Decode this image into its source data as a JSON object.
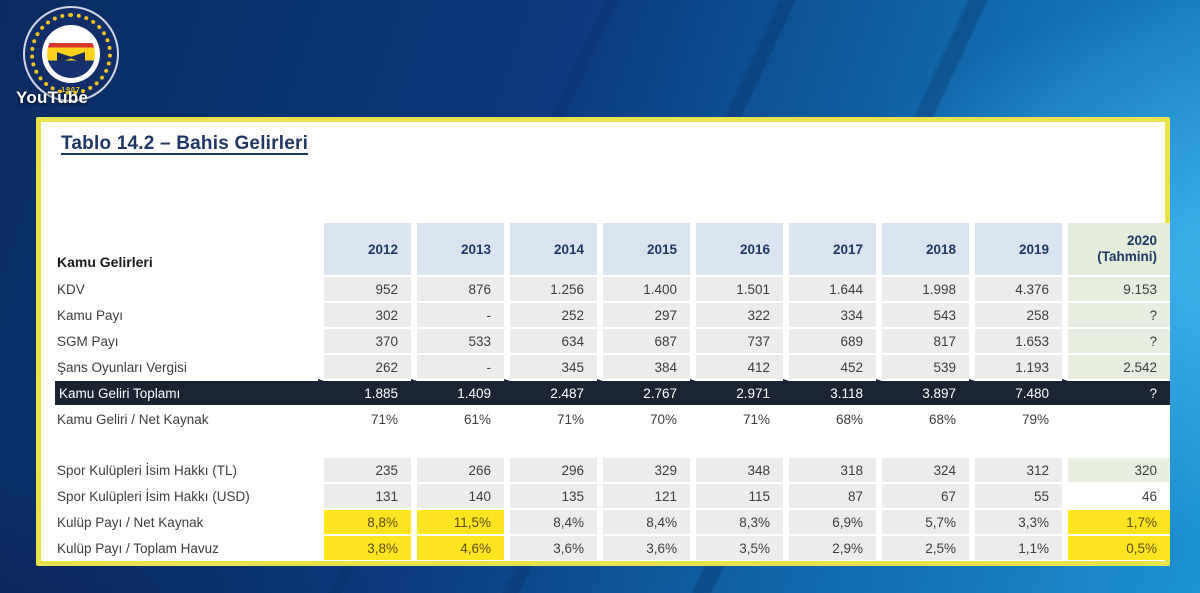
{
  "watermark": "YouTube",
  "logo": {
    "name": "fenerbahce-crest",
    "year": "1907"
  },
  "card": {
    "title": "Tablo 14.2 – Bahis Gelirleri"
  },
  "palette": {
    "card_border": "#e8e34c",
    "title_navy": "#1f3864",
    "header_blue": "#dae4f0",
    "forecast_green_hd": "#e4ecdb",
    "forecast_green": "#e7eee0",
    "highlight_yellow": "#ffe51f",
    "total_dark": "#1b2433"
  },
  "table": {
    "label_header": "Kamu Gelirleri",
    "years": [
      "2012",
      "2013",
      "2014",
      "2015",
      "2016",
      "2017",
      "2018",
      "2019"
    ],
    "forecast_year": {
      "line1": "2020",
      "line2": "(Tahmini)"
    },
    "rows": [
      {
        "label": "KDV",
        "row_style": "gray",
        "last": "green",
        "values": [
          "952",
          "876",
          "1.256",
          "1.400",
          "1.501",
          "1.644",
          "1.998",
          "4.376",
          "9.153"
        ]
      },
      {
        "label": "Kamu Payı",
        "row_style": "gray",
        "last": "green",
        "values": [
          "302",
          "-",
          "252",
          "297",
          "322",
          "334",
          "543",
          "258",
          "?"
        ]
      },
      {
        "label": "SGM Payı",
        "row_style": "gray",
        "last": "green",
        "values": [
          "370",
          "533",
          "634",
          "687",
          "737",
          "689",
          "817",
          "1.653",
          "?"
        ]
      },
      {
        "label": "Şans Oyunları Vergisi",
        "row_style": "gray",
        "last": "green",
        "values": [
          "262",
          "-",
          "345",
          "384",
          "412",
          "452",
          "539",
          "1.193",
          "2.542"
        ]
      },
      {
        "label": "Kamu Geliri Toplamı",
        "row_style": "total",
        "last": "dark",
        "values": [
          "1.885",
          "1.409",
          "2.487",
          "2.767",
          "2.971",
          "3.118",
          "3.897",
          "7.480",
          "?"
        ]
      },
      {
        "label": "Kamu Geliri / Net Kaynak",
        "row_style": "plain",
        "last": "plain",
        "values": [
          "71%",
          "61%",
          "71%",
          "70%",
          "71%",
          "68%",
          "68%",
          "79%",
          ""
        ]
      },
      {
        "label": "",
        "row_style": "spacer",
        "last": "plain",
        "values": [
          "",
          "",
          "",
          "",
          "",
          "",
          "",
          "",
          ""
        ]
      },
      {
        "label": "Spor Kulüpleri İsim Hakkı (TL)",
        "row_style": "gray",
        "last": "green",
        "values": [
          "235",
          "266",
          "296",
          "329",
          "348",
          "318",
          "324",
          "312",
          "320"
        ]
      },
      {
        "label": "Spor Kulüpleri İsim Hakkı  (USD)",
        "row_style": "gray",
        "last": "plain",
        "values": [
          "131",
          "140",
          "135",
          "121",
          "115",
          "87",
          "67",
          "55",
          "46"
        ]
      },
      {
        "label": "Kulüp Payı / Net Kaynak",
        "row_style": "gray",
        "last": "yellow",
        "highlight_cols": [
          0,
          1
        ],
        "values": [
          "8,8%",
          "11,5%",
          "8,4%",
          "8,4%",
          "8,3%",
          "6,9%",
          "5,7%",
          "3,3%",
          "1,7%"
        ]
      },
      {
        "label": "Kulüp Payı / Toplam Havuz",
        "row_style": "gray",
        "last": "yellow",
        "highlight_cols": [
          0,
          1
        ],
        "values": [
          "3,8%",
          "4,6%",
          "3,6%",
          "3,6%",
          "3,5%",
          "2,9%",
          "2,5%",
          "1,1%",
          "0,5%"
        ]
      }
    ]
  }
}
